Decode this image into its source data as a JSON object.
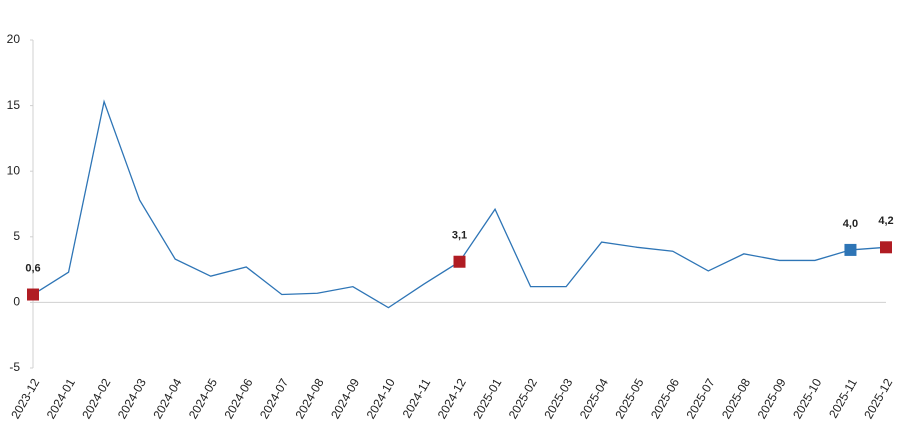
{
  "chart_data": {
    "type": "line",
    "categories": [
      "2023-12",
      "2024-01",
      "2024-02",
      "2024-03",
      "2024-04",
      "2024-05",
      "2024-06",
      "2024-07",
      "2024-08",
      "2024-09",
      "2024-10",
      "2024-11",
      "2024-12",
      "2025-01",
      "2025-02",
      "2025-03",
      "2025-04",
      "2025-05",
      "2025-06",
      "2025-07",
      "2025-08",
      "2025-09",
      "2025-10",
      "2025-11",
      "2025-12"
    ],
    "series": [
      {
        "color": "#2e75b6",
        "values": [
          0.6,
          2.3,
          15.3,
          7.8,
          3.3,
          2.0,
          2.7,
          0.6,
          0.7,
          1.2,
          -0.4,
          1.4,
          3.1,
          7.1,
          1.2,
          1.2,
          4.6,
          4.2,
          3.9,
          2.4,
          3.7,
          3.2,
          3.2,
          4.0,
          4.2
        ],
        "value_labels": [
          "0,6",
          null,
          null,
          null,
          null,
          null,
          null,
          null,
          null,
          null,
          null,
          null,
          "3,1",
          null,
          null,
          null,
          null,
          null,
          null,
          null,
          null,
          null,
          null,
          "4,0",
          "4,2"
        ],
        "marker_colors": [
          "#b01c23",
          null,
          null,
          null,
          null,
          null,
          null,
          null,
          null,
          null,
          null,
          null,
          "#b01c23",
          null,
          null,
          null,
          null,
          null,
          null,
          null,
          null,
          null,
          null,
          "#2e75b6",
          "#b01c23"
        ]
      }
    ],
    "ylim": [
      -5,
      20
    ],
    "yticks": [
      -5,
      0,
      5,
      10,
      15,
      20
    ],
    "grid": false
  }
}
